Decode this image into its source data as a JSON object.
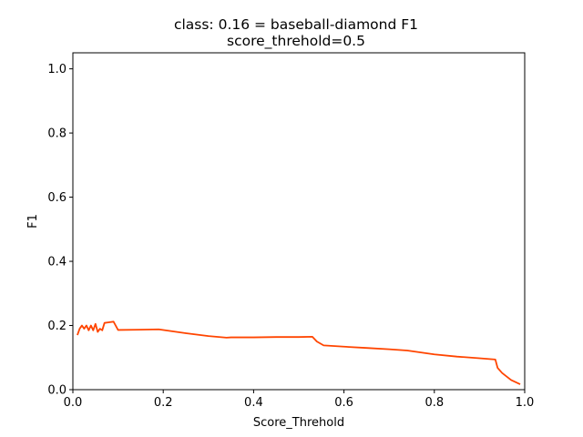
{
  "chart_data": {
    "type": "line",
    "title": "class: 0.16 = baseball-diamond F1",
    "subtitle": "score_threhold=0.5",
    "xlabel": "Score_Threhold",
    "ylabel": "F1",
    "xlim": [
      0.0,
      1.0
    ],
    "ylim": [
      0.0,
      1.05
    ],
    "xticks": [
      "0.0",
      "0.2",
      "0.4",
      "0.6",
      "0.8",
      "1.0"
    ],
    "yticks": [
      "0.0",
      "0.2",
      "0.4",
      "0.6",
      "0.8",
      "1.0"
    ],
    "grid": false,
    "line_color": "#ff4500",
    "series": [
      {
        "x": [
          0.01,
          0.015,
          0.02,
          0.025,
          0.03,
          0.035,
          0.04,
          0.045,
          0.05,
          0.055,
          0.06,
          0.065,
          0.07,
          0.08,
          0.09,
          0.1,
          0.15,
          0.19,
          0.25,
          0.3,
          0.34,
          0.35,
          0.4,
          0.45,
          0.5,
          0.53,
          0.54,
          0.555,
          0.6,
          0.65,
          0.7,
          0.74,
          0.8,
          0.85,
          0.9,
          0.935,
          0.94,
          0.95,
          0.97,
          0.99
        ],
        "y": [
          0.17,
          0.19,
          0.2,
          0.19,
          0.2,
          0.185,
          0.2,
          0.185,
          0.205,
          0.18,
          0.19,
          0.185,
          0.208,
          0.21,
          0.212,
          0.186,
          0.187,
          0.188,
          0.176,
          0.167,
          0.162,
          0.163,
          0.163,
          0.164,
          0.164,
          0.165,
          0.15,
          0.138,
          0.134,
          0.13,
          0.126,
          0.122,
          0.11,
          0.103,
          0.098,
          0.094,
          0.068,
          0.052,
          0.03,
          0.017
        ]
      }
    ]
  }
}
